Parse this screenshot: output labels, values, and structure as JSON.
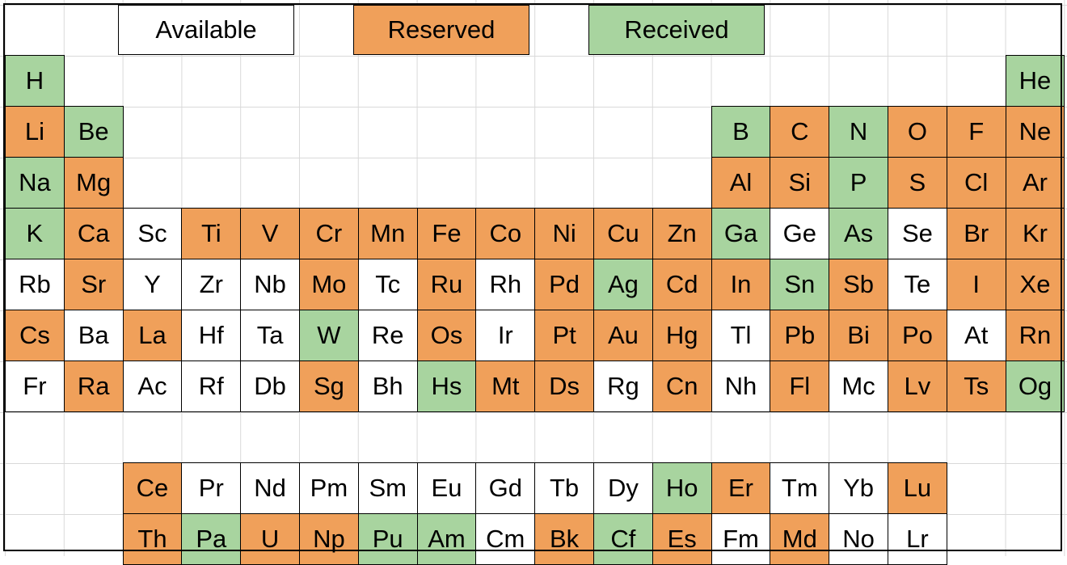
{
  "colors": {
    "available": "#ffffff",
    "reserved": "#f0a05a",
    "received": "#a8d49f"
  },
  "legend": [
    {
      "label": "Available",
      "status": "available"
    },
    {
      "label": "Reserved",
      "status": "reserved"
    },
    {
      "label": "Received",
      "status": "received"
    }
  ],
  "elements": [
    {
      "s": "H",
      "st": "received"
    },
    {
      "s": "He",
      "st": "received"
    },
    {
      "s": "Li",
      "st": "reserved"
    },
    {
      "s": "Be",
      "st": "received"
    },
    {
      "s": "B",
      "st": "received"
    },
    {
      "s": "C",
      "st": "reserved"
    },
    {
      "s": "N",
      "st": "received"
    },
    {
      "s": "O",
      "st": "reserved"
    },
    {
      "s": "F",
      "st": "reserved"
    },
    {
      "s": "Ne",
      "st": "reserved"
    },
    {
      "s": "Na",
      "st": "received"
    },
    {
      "s": "Mg",
      "st": "reserved"
    },
    {
      "s": "Al",
      "st": "reserved"
    },
    {
      "s": "Si",
      "st": "reserved"
    },
    {
      "s": "P",
      "st": "received"
    },
    {
      "s": "S",
      "st": "reserved"
    },
    {
      "s": "Cl",
      "st": "reserved"
    },
    {
      "s": "Ar",
      "st": "reserved"
    },
    {
      "s": "K",
      "st": "received"
    },
    {
      "s": "Ca",
      "st": "reserved"
    },
    {
      "s": "Sc",
      "st": "available"
    },
    {
      "s": "Ti",
      "st": "reserved"
    },
    {
      "s": "V",
      "st": "reserved"
    },
    {
      "s": "Cr",
      "st": "reserved"
    },
    {
      "s": "Mn",
      "st": "reserved"
    },
    {
      "s": "Fe",
      "st": "reserved"
    },
    {
      "s": "Co",
      "st": "reserved"
    },
    {
      "s": "Ni",
      "st": "reserved"
    },
    {
      "s": "Cu",
      "st": "reserved"
    },
    {
      "s": "Zn",
      "st": "reserved"
    },
    {
      "s": "Ga",
      "st": "received"
    },
    {
      "s": "Ge",
      "st": "available"
    },
    {
      "s": "As",
      "st": "received"
    },
    {
      "s": "Se",
      "st": "available"
    },
    {
      "s": "Br",
      "st": "reserved"
    },
    {
      "s": "Kr",
      "st": "reserved"
    },
    {
      "s": "Rb",
      "st": "available"
    },
    {
      "s": "Sr",
      "st": "reserved"
    },
    {
      "s": "Y",
      "st": "available"
    },
    {
      "s": "Zr",
      "st": "available"
    },
    {
      "s": "Nb",
      "st": "available"
    },
    {
      "s": "Mo",
      "st": "reserved"
    },
    {
      "s": "Tc",
      "st": "available"
    },
    {
      "s": "Ru",
      "st": "reserved"
    },
    {
      "s": "Rh",
      "st": "available"
    },
    {
      "s": "Pd",
      "st": "reserved"
    },
    {
      "s": "Ag",
      "st": "received"
    },
    {
      "s": "Cd",
      "st": "reserved"
    },
    {
      "s": "In",
      "st": "reserved"
    },
    {
      "s": "Sn",
      "st": "received"
    },
    {
      "s": "Sb",
      "st": "reserved"
    },
    {
      "s": "Te",
      "st": "available"
    },
    {
      "s": "I",
      "st": "reserved"
    },
    {
      "s": "Xe",
      "st": "reserved"
    },
    {
      "s": "Cs",
      "st": "reserved"
    },
    {
      "s": "Ba",
      "st": "available"
    },
    {
      "s": "La",
      "st": "reserved"
    },
    {
      "s": "Hf",
      "st": "available"
    },
    {
      "s": "Ta",
      "st": "available"
    },
    {
      "s": "W",
      "st": "received"
    },
    {
      "s": "Re",
      "st": "available"
    },
    {
      "s": "Os",
      "st": "reserved"
    },
    {
      "s": "Ir",
      "st": "available"
    },
    {
      "s": "Pt",
      "st": "reserved"
    },
    {
      "s": "Au",
      "st": "reserved"
    },
    {
      "s": "Hg",
      "st": "reserved"
    },
    {
      "s": "Tl",
      "st": "available"
    },
    {
      "s": "Pb",
      "st": "reserved"
    },
    {
      "s": "Bi",
      "st": "reserved"
    },
    {
      "s": "Po",
      "st": "reserved"
    },
    {
      "s": "At",
      "st": "available"
    },
    {
      "s": "Rn",
      "st": "reserved"
    },
    {
      "s": "Fr",
      "st": "available"
    },
    {
      "s": "Ra",
      "st": "reserved"
    },
    {
      "s": "Ac",
      "st": "available"
    },
    {
      "s": "Rf",
      "st": "available"
    },
    {
      "s": "Db",
      "st": "available"
    },
    {
      "s": "Sg",
      "st": "reserved"
    },
    {
      "s": "Bh",
      "st": "available"
    },
    {
      "s": "Hs",
      "st": "received"
    },
    {
      "s": "Mt",
      "st": "reserved"
    },
    {
      "s": "Ds",
      "st": "reserved"
    },
    {
      "s": "Rg",
      "st": "available"
    },
    {
      "s": "Cn",
      "st": "reserved"
    },
    {
      "s": "Nh",
      "st": "available"
    },
    {
      "s": "Fl",
      "st": "reserved"
    },
    {
      "s": "Mc",
      "st": "available"
    },
    {
      "s": "Lv",
      "st": "reserved"
    },
    {
      "s": "Ts",
      "st": "reserved"
    },
    {
      "s": "Og",
      "st": "received"
    },
    {
      "s": "Ce",
      "st": "reserved"
    },
    {
      "s": "Pr",
      "st": "available"
    },
    {
      "s": "Nd",
      "st": "available"
    },
    {
      "s": "Pm",
      "st": "available"
    },
    {
      "s": "Sm",
      "st": "available"
    },
    {
      "s": "Eu",
      "st": "available"
    },
    {
      "s": "Gd",
      "st": "available"
    },
    {
      "s": "Tb",
      "st": "available"
    },
    {
      "s": "Dy",
      "st": "available"
    },
    {
      "s": "Ho",
      "st": "received"
    },
    {
      "s": "Er",
      "st": "reserved"
    },
    {
      "s": "Tm",
      "st": "available"
    },
    {
      "s": "Yb",
      "st": "available"
    },
    {
      "s": "Lu",
      "st": "reserved"
    },
    {
      "s": "Th",
      "st": "reserved"
    },
    {
      "s": "Pa",
      "st": "received"
    },
    {
      "s": "U",
      "st": "reserved"
    },
    {
      "s": "Np",
      "st": "reserved"
    },
    {
      "s": "Pu",
      "st": "received"
    },
    {
      "s": "Am",
      "st": "received"
    },
    {
      "s": "Cm",
      "st": "available"
    },
    {
      "s": "Bk",
      "st": "reserved"
    },
    {
      "s": "Cf",
      "st": "received"
    },
    {
      "s": "Es",
      "st": "reserved"
    },
    {
      "s": "Fm",
      "st": "available"
    },
    {
      "s": "Md",
      "st": "reserved"
    },
    {
      "s": "No",
      "st": "available"
    },
    {
      "s": "Lr",
      "st": "available"
    }
  ]
}
